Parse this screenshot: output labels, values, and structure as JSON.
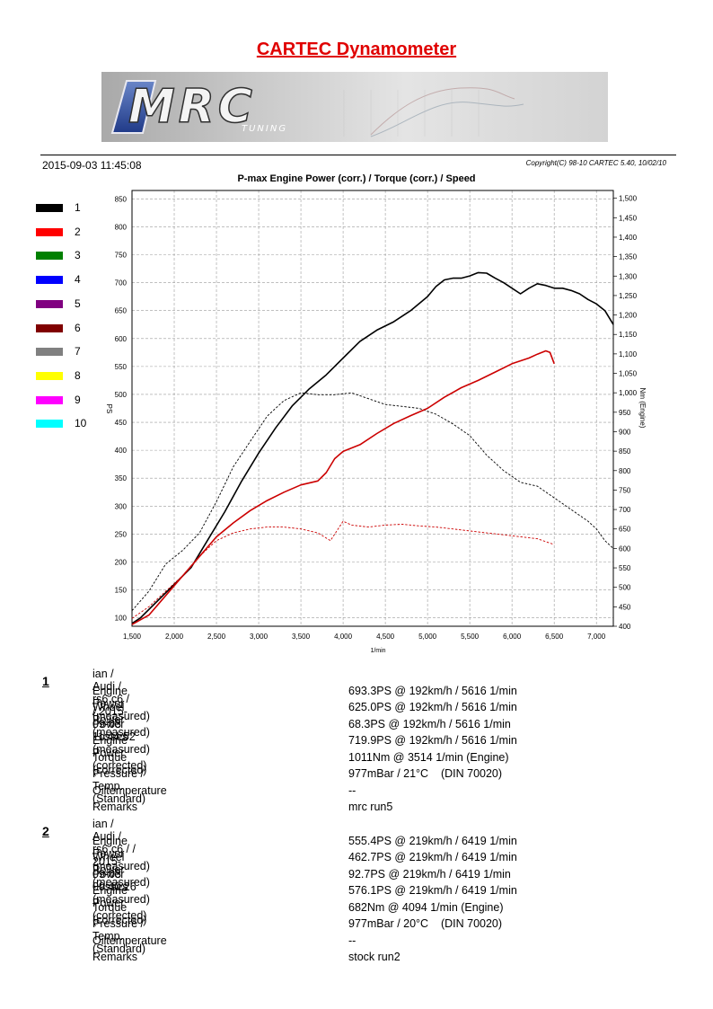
{
  "page": {
    "title": "CARTEC Dynamometer",
    "date": "2015-09-03 11:45:08",
    "copyright": "Copyright(C) 98-10 CARTEC 5.40, 10/02/10"
  },
  "logo": {
    "text": "MRC",
    "subtext": "TUNING"
  },
  "legend": [
    {
      "label": "1",
      "color": "#000000"
    },
    {
      "label": "2",
      "color": "#ff0000"
    },
    {
      "label": "3",
      "color": "#008000"
    },
    {
      "label": "4",
      "color": "#0000ff"
    },
    {
      "label": "5",
      "color": "#800080"
    },
    {
      "label": "6",
      "color": "#800000"
    },
    {
      "label": "7",
      "color": "#808080"
    },
    {
      "label": "8",
      "color": "#ffff00"
    },
    {
      "label": "9",
      "color": "#ff00ff"
    },
    {
      "label": "10",
      "color": "#00ffff"
    }
  ],
  "chart_data": {
    "type": "line",
    "title": "P-max Engine Power (corr.) / Torque (corr.) / Speed",
    "xlabel": "1/min",
    "ylabel_left": "PS",
    "ylabel_right": "Nm (Engine)",
    "xlim": [
      1500,
      7200
    ],
    "ylim_left": [
      85,
      865
    ],
    "ylim_right": [
      400,
      1520
    ],
    "x_ticks": [
      1500,
      2000,
      2500,
      3000,
      3500,
      4000,
      4500,
      5000,
      5500,
      6000,
      6500,
      7000
    ],
    "x_tick_labels": [
      "1,500",
      "2,000",
      "2,500",
      "3,000",
      "3,500",
      "4,000",
      "4,500",
      "5,000",
      "5,500",
      "6,000",
      "6,500",
      "7,000"
    ],
    "y_left_ticks": [
      100,
      150,
      200,
      250,
      300,
      350,
      400,
      450,
      500,
      550,
      600,
      650,
      700,
      750,
      800,
      850
    ],
    "y_right_ticks": [
      400,
      450,
      500,
      550,
      600,
      650,
      700,
      750,
      800,
      850,
      900,
      950,
      1000,
      1050,
      1100,
      1150,
      1200,
      1250,
      1300,
      1350,
      1400,
      1450,
      1500
    ],
    "y_right_tick_labels": [
      "400",
      "450",
      "500",
      "550",
      "600",
      "650",
      "700",
      "750",
      "800",
      "850",
      "900",
      "950",
      "1,000",
      "1,050",
      "1,100",
      "1,150",
      "1,200",
      "1,250",
      "1,300",
      "1,350",
      "1,400",
      "1,450",
      "1,500"
    ],
    "grid": true,
    "legend_position": "left",
    "series": [
      {
        "name": "1",
        "quantity": "Engine Power (corr.)",
        "axis": "left",
        "color": "#000000",
        "dash": false,
        "x": [
          1500,
          1600,
          1800,
          2000,
          2200,
          2400,
          2600,
          2800,
          3000,
          3200,
          3400,
          3600,
          3800,
          4000,
          4200,
          4400,
          4600,
          4800,
          5000,
          5100,
          5200,
          5300,
          5400,
          5500,
          5600,
          5700,
          5800,
          5900,
          6000,
          6100,
          6200,
          6300,
          6400,
          6500,
          6600,
          6700,
          6800,
          6900,
          7000,
          7100,
          7200
        ],
        "y": [
          90,
          100,
          130,
          160,
          190,
          240,
          290,
          345,
          395,
          440,
          480,
          510,
          535,
          565,
          595,
          615,
          630,
          650,
          675,
          693,
          705,
          708,
          708,
          712,
          718,
          717,
          708,
          700,
          690,
          680,
          690,
          698,
          695,
          690,
          690,
          686,
          680,
          670,
          662,
          650,
          625
        ]
      },
      {
        "name": "1",
        "quantity": "Torque (corr.)",
        "axis": "right",
        "color": "#000000",
        "dash": true,
        "x": [
          1500,
          1700,
          1900,
          2100,
          2300,
          2500,
          2700,
          2900,
          3100,
          3300,
          3500,
          3700,
          3900,
          4100,
          4300,
          4500,
          4700,
          4900,
          5100,
          5300,
          5500,
          5700,
          5900,
          6100,
          6300,
          6500,
          6700,
          6900,
          7000,
          7100,
          7200
        ],
        "y": [
          440,
          490,
          560,
          595,
          640,
          720,
          810,
          875,
          940,
          980,
          1000,
          995,
          995,
          1000,
          985,
          970,
          965,
          960,
          945,
          920,
          890,
          840,
          800,
          770,
          760,
          730,
          700,
          670,
          650,
          620,
          600
        ]
      },
      {
        "name": "2",
        "quantity": "Engine Power (corr.)",
        "axis": "left",
        "color": "#cc0000",
        "dash": false,
        "x": [
          1500,
          1700,
          1900,
          2100,
          2300,
          2500,
          2700,
          2900,
          3100,
          3300,
          3500,
          3700,
          3800,
          3900,
          4000,
          4200,
          4400,
          4600,
          4800,
          5000,
          5200,
          5400,
          5600,
          5800,
          6000,
          6200,
          6300,
          6400,
          6450,
          6500
        ],
        "y": [
          88,
          105,
          140,
          175,
          210,
          245,
          270,
          292,
          310,
          325,
          338,
          345,
          360,
          385,
          398,
          410,
          430,
          448,
          462,
          475,
          495,
          512,
          525,
          540,
          555,
          565,
          572,
          578,
          575,
          555
        ]
      },
      {
        "name": "2",
        "quantity": "Torque (corr.)",
        "axis": "right",
        "color": "#cc0000",
        "dash": true,
        "x": [
          1500,
          1700,
          1900,
          2100,
          2300,
          2500,
          2700,
          2900,
          3100,
          3300,
          3500,
          3700,
          3850,
          4000,
          4100,
          4300,
          4500,
          4700,
          4900,
          5100,
          5300,
          5500,
          5700,
          5900,
          6100,
          6300,
          6500
        ],
        "y": [
          420,
          450,
          490,
          530,
          580,
          620,
          640,
          650,
          655,
          655,
          650,
          640,
          620,
          670,
          660,
          655,
          660,
          662,
          658,
          655,
          650,
          645,
          640,
          635,
          630,
          625,
          610
        ]
      }
    ]
  },
  "runs": [
    {
      "number": "1",
      "header": "ian / Audi / rs6 c6 /  / 2015-09-03 11:44:52",
      "rows": [
        {
          "label": "Engine Power (measured)",
          "value": "693.3PS @ 192km/h / 5616 1/min"
        },
        {
          "label": "Wheel Power (measured)",
          "value": "625.0PS @ 192km/h / 5616 1/min"
        },
        {
          "label": "Power Losses (measured)",
          "value": "68.3PS @ 192km/h / 5616 1/min"
        },
        {
          "label": "Engine Power (corrected)",
          "value": "719.9PS @ 192km/h / 5616 1/min"
        },
        {
          "label": "Torque (corrected)",
          "value": "1011Nm @ 3514 1/min (Engine)"
        },
        {
          "label": "Pressure / Temp. (Standard)",
          "value": "977mBar / 21°C    (DIN 70020)"
        },
        {
          "label": "Oiltemperature",
          "value": "--"
        },
        {
          "label": "Remarks",
          "value": "mrc run5"
        }
      ]
    },
    {
      "number": "2",
      "header": "ian / Audi / rs6 c6 /  / 2015-09-03 09:40:26",
      "rows": [
        {
          "label": "Engine Power (measured)",
          "value": "555.4PS @ 219km/h / 6419 1/min"
        },
        {
          "label": "Wheel Power (measured)",
          "value": "462.7PS @ 219km/h / 6419 1/min"
        },
        {
          "label": "Power Losses (measured)",
          "value": "92.7PS @ 219km/h / 6419 1/min"
        },
        {
          "label": "Engine Power (corrected)",
          "value": "576.1PS @ 219km/h / 6419 1/min"
        },
        {
          "label": "Torque (corrected)",
          "value": "682Nm @ 4094 1/min (Engine)"
        },
        {
          "label": "Pressure / Temp. (Standard)",
          "value": "977mBar / 20°C    (DIN 70020)"
        },
        {
          "label": "Oiltemperature",
          "value": "--"
        },
        {
          "label": "Remarks",
          "value": "stock run2"
        }
      ]
    }
  ]
}
